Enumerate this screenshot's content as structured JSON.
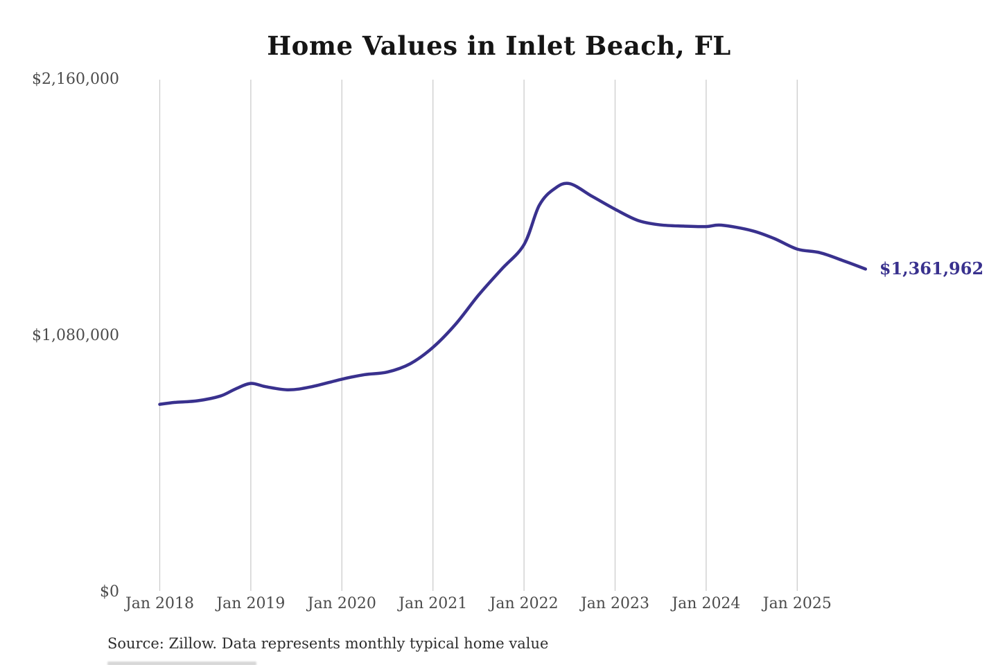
{
  "title": "Home Values in Inlet Beach, FL",
  "source_note": "Source: Zillow. Data represents monthly typical home value",
  "colors": {
    "line": "#39318e",
    "end_label": "#39318e",
    "gridline": "#cccccc",
    "axis_text": "#4b4b4b",
    "title_text": "#151515",
    "source_text": "#2e2e2e",
    "background": "#ffffff"
  },
  "chart_data": {
    "type": "line",
    "title": "Home Values in Inlet Beach, FL",
    "xlabel": "",
    "ylabel": "",
    "grid": "vertical-only",
    "legend": "none",
    "ylim": [
      0,
      2160000
    ],
    "y_ticks": [
      {
        "label": "$2,160,000",
        "value": 2160000
      },
      {
        "label": "$1,080,000",
        "value": 1080000
      },
      {
        "label": "$0",
        "value": 0
      }
    ],
    "x_ticks": [
      {
        "label": "Jan 2018",
        "date": "2018-01"
      },
      {
        "label": "Jan 2019",
        "date": "2019-01"
      },
      {
        "label": "Jan 2020",
        "date": "2020-01"
      },
      {
        "label": "Jan 2021",
        "date": "2021-01"
      },
      {
        "label": "Jan 2022",
        "date": "2022-01"
      },
      {
        "label": "Jan 2023",
        "date": "2023-01"
      },
      {
        "label": "Jan 2024",
        "date": "2024-01"
      },
      {
        "label": "Jan 2025",
        "date": "2025-01"
      }
    ],
    "series": [
      {
        "name": "Monthly typical home value",
        "points": [
          {
            "date": "2018-01",
            "value": 792000
          },
          {
            "date": "2018-03",
            "value": 800000
          },
          {
            "date": "2018-06",
            "value": 807000
          },
          {
            "date": "2018-09",
            "value": 827000
          },
          {
            "date": "2018-11",
            "value": 857000
          },
          {
            "date": "2019-01",
            "value": 880000
          },
          {
            "date": "2019-03",
            "value": 866000
          },
          {
            "date": "2019-06",
            "value": 853000
          },
          {
            "date": "2019-09",
            "value": 866000
          },
          {
            "date": "2020-01",
            "value": 898000
          },
          {
            "date": "2020-04",
            "value": 917000
          },
          {
            "date": "2020-07",
            "value": 928000
          },
          {
            "date": "2020-10",
            "value": 963000
          },
          {
            "date": "2021-01",
            "value": 1032000
          },
          {
            "date": "2021-04",
            "value": 1130000
          },
          {
            "date": "2021-07",
            "value": 1252000
          },
          {
            "date": "2021-10",
            "value": 1360000
          },
          {
            "date": "2022-01",
            "value": 1465000
          },
          {
            "date": "2022-03",
            "value": 1630000
          },
          {
            "date": "2022-05",
            "value": 1700000
          },
          {
            "date": "2022-07",
            "value": 1722000
          },
          {
            "date": "2022-10",
            "value": 1668000
          },
          {
            "date": "2023-01",
            "value": 1614000
          },
          {
            "date": "2023-04",
            "value": 1567000
          },
          {
            "date": "2023-07",
            "value": 1548000
          },
          {
            "date": "2023-10",
            "value": 1543000
          },
          {
            "date": "2024-01",
            "value": 1541000
          },
          {
            "date": "2024-03",
            "value": 1547000
          },
          {
            "date": "2024-07",
            "value": 1524000
          },
          {
            "date": "2024-10",
            "value": 1490000
          },
          {
            "date": "2025-01",
            "value": 1446000
          },
          {
            "date": "2025-04",
            "value": 1431000
          },
          {
            "date": "2025-07",
            "value": 1398000
          },
          {
            "date": "2025-10",
            "value": 1361962
          }
        ]
      }
    ],
    "end_label": "$1,361,962",
    "latest_value": 1361962
  }
}
